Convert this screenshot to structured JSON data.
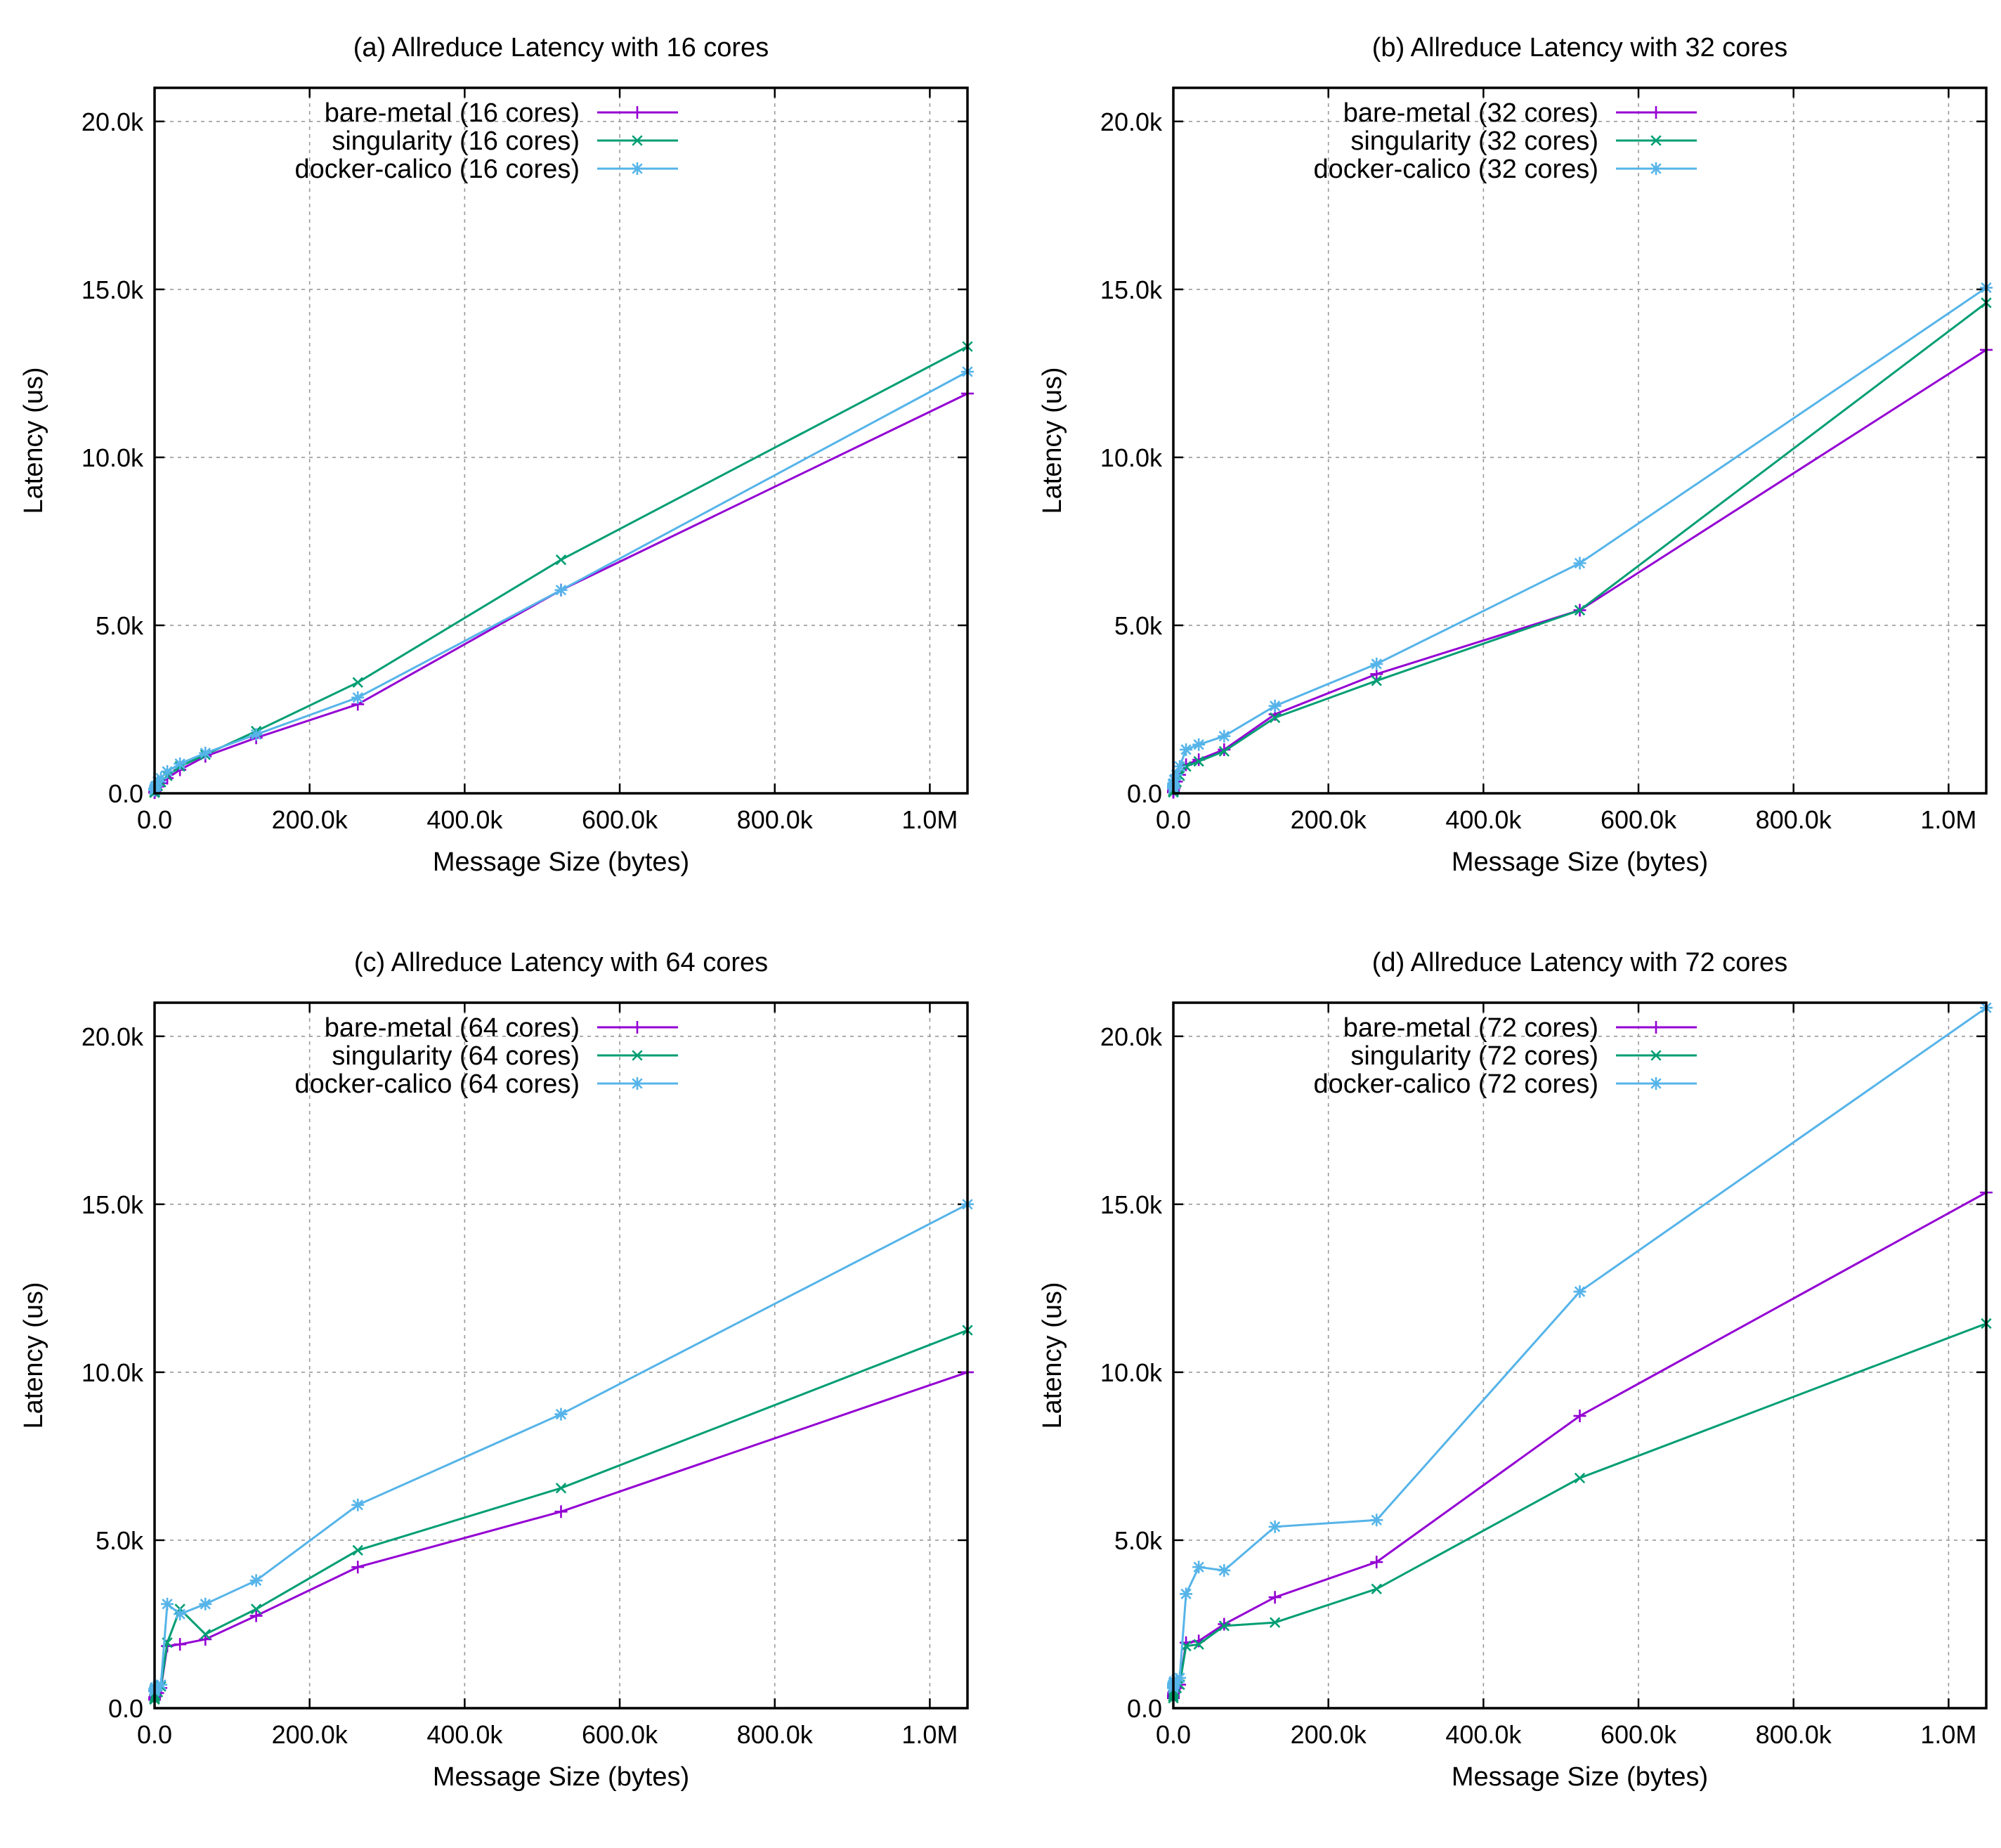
{
  "chart_data": [
    {
      "type": "line",
      "title": "(a) Allreduce Latency with 16 cores",
      "xlabel": "Message Size (bytes)",
      "ylabel": "Latency (us)",
      "xlim": [
        0,
        1048576
      ],
      "ylim": [
        0,
        21000
      ],
      "xticks": [
        0,
        200000,
        400000,
        600000,
        800000,
        1000000
      ],
      "xtick_labels": [
        "0.0",
        "200.0k",
        "400.0k",
        "600.0k",
        "800.0k",
        "1.0M"
      ],
      "yticks": [
        0,
        5000,
        10000,
        15000,
        20000
      ],
      "ytick_labels": [
        "0.0",
        "5.0k",
        "10.0k",
        "15.0k",
        "20.0k"
      ],
      "grid": true,
      "legend_position": "top-left",
      "x": [
        4,
        16,
        64,
        256,
        1024,
        4096,
        8192,
        16384,
        32768,
        65536,
        131072,
        262144,
        524288,
        1048576
      ],
      "series": [
        {
          "name": "bare-metal (16 cores)",
          "color": "#9400d3",
          "marker": "plus",
          "values": [
            20,
            25,
            35,
            50,
            90,
            200,
            300,
            450,
            700,
            1100,
            1650,
            2650,
            6050,
            11900
          ]
        },
        {
          "name": "singularity (16 cores)",
          "color": "#009e73",
          "marker": "cross",
          "values": [
            20,
            25,
            35,
            55,
            100,
            220,
            330,
            520,
            800,
            1150,
            1850,
            3300,
            6950,
            13300
          ]
        },
        {
          "name": "docker-calico (16 cores)",
          "color": "#56b4e9",
          "marker": "star",
          "values": [
            90,
            110,
            130,
            150,
            200,
            350,
            450,
            650,
            880,
            1200,
            1750,
            2850,
            6050,
            12550
          ]
        }
      ]
    },
    {
      "type": "line",
      "title": "(b) Allreduce Latency with 32 cores",
      "xlabel": "Message Size (bytes)",
      "ylabel": "Latency (us)",
      "xlim": [
        0,
        1048576
      ],
      "ylim": [
        0,
        21000
      ],
      "xticks": [
        0,
        200000,
        400000,
        600000,
        800000,
        1000000
      ],
      "xtick_labels": [
        "0.0",
        "200.0k",
        "400.0k",
        "600.0k",
        "800.0k",
        "1.0M"
      ],
      "yticks": [
        0,
        5000,
        10000,
        15000,
        20000
      ],
      "ytick_labels": [
        "0.0",
        "5.0k",
        "10.0k",
        "15.0k",
        "20.0k"
      ],
      "grid": true,
      "legend_position": "top-left",
      "x": [
        4,
        16,
        64,
        256,
        1024,
        4096,
        8192,
        16384,
        32768,
        65536,
        131072,
        262144,
        524288,
        1048576
      ],
      "series": [
        {
          "name": "bare-metal (32 cores)",
          "color": "#9400d3",
          "marker": "plus",
          "values": [
            30,
            40,
            60,
            90,
            150,
            350,
            550,
            850,
            1000,
            1300,
            2350,
            3550,
            5450,
            13200
          ]
        },
        {
          "name": "singularity (32 cores)",
          "color": "#009e73",
          "marker": "cross",
          "values": [
            30,
            40,
            60,
            90,
            160,
            330,
            520,
            800,
            950,
            1250,
            2250,
            3350,
            5450,
            14600
          ]
        },
        {
          "name": "docker-calico (32 cores)",
          "color": "#56b4e9",
          "marker": "star",
          "values": [
            150,
            200,
            250,
            300,
            400,
            550,
            800,
            1300,
            1450,
            1700,
            2600,
            3850,
            6850,
            15050
          ]
        }
      ]
    },
    {
      "type": "line",
      "title": "(c) Allreduce Latency with 64 cores",
      "xlabel": "Message Size (bytes)",
      "ylabel": "Latency (us)",
      "xlim": [
        0,
        1048576
      ],
      "ylim": [
        0,
        21000
      ],
      "xticks": [
        0,
        200000,
        400000,
        600000,
        800000,
        1000000
      ],
      "xtick_labels": [
        "0.0",
        "200.0k",
        "400.0k",
        "600.0k",
        "800.0k",
        "1.0M"
      ],
      "yticks": [
        0,
        5000,
        10000,
        15000,
        20000
      ],
      "ytick_labels": [
        "0.0",
        "5.0k",
        "10.0k",
        "15.0k",
        "20.0k"
      ],
      "grid": true,
      "legend_position": "top-left",
      "x": [
        4,
        16,
        64,
        256,
        1024,
        4096,
        8192,
        16384,
        32768,
        65536,
        131072,
        262144,
        524288,
        1048576
      ],
      "series": [
        {
          "name": "bare-metal (64 cores)",
          "color": "#9400d3",
          "marker": "plus",
          "values": [
            250,
            280,
            300,
            330,
            380,
            450,
            600,
            1850,
            1900,
            2050,
            2750,
            4200,
            5850,
            10000
          ]
        },
        {
          "name": "singularity (64 cores)",
          "color": "#009e73",
          "marker": "cross",
          "values": [
            260,
            290,
            310,
            350,
            400,
            480,
            650,
            1950,
            2950,
            2200,
            2950,
            4700,
            6550,
            11250
          ]
        },
        {
          "name": "docker-calico (64 cores)",
          "color": "#56b4e9",
          "marker": "star",
          "values": [
            500,
            520,
            550,
            580,
            620,
            650,
            700,
            3100,
            2800,
            3100,
            3800,
            6050,
            8750,
            15000
          ]
        }
      ]
    },
    {
      "type": "line",
      "title": "(d) Allreduce Latency with 72 cores",
      "xlabel": "Message Size (bytes)",
      "ylabel": "Latency (us)",
      "xlim": [
        0,
        1048576
      ],
      "ylim": [
        0,
        21000
      ],
      "xticks": [
        0,
        200000,
        400000,
        600000,
        800000,
        1000000
      ],
      "xtick_labels": [
        "0.0",
        "200.0k",
        "400.0k",
        "600.0k",
        "800.0k",
        "1.0M"
      ],
      "yticks": [
        0,
        5000,
        10000,
        15000,
        20000
      ],
      "ytick_labels": [
        "0.0",
        "5.0k",
        "10.0k",
        "15.0k",
        "20.0k"
      ],
      "grid": true,
      "legend_position": "top-left",
      "x": [
        4,
        16,
        64,
        256,
        1024,
        4096,
        8192,
        16384,
        32768,
        65536,
        131072,
        262144,
        524288,
        1048576
      ],
      "series": [
        {
          "name": "bare-metal (72 cores)",
          "color": "#9400d3",
          "marker": "plus",
          "values": [
            300,
            350,
            400,
            450,
            500,
            600,
            700,
            1950,
            2000,
            2500,
            3300,
            4350,
            8700,
            15350
          ]
        },
        {
          "name": "singularity (72 cores)",
          "color": "#009e73",
          "marker": "cross",
          "values": [
            300,
            350,
            400,
            450,
            500,
            600,
            700,
            1850,
            1900,
            2450,
            2550,
            3550,
            6850,
            11450
          ]
        },
        {
          "name": "docker-calico (72 cores)",
          "color": "#56b4e9",
          "marker": "star",
          "values": [
            600,
            650,
            700,
            750,
            800,
            850,
            900,
            3400,
            4200,
            4100,
            5400,
            5600,
            12400,
            20850
          ]
        }
      ]
    }
  ]
}
